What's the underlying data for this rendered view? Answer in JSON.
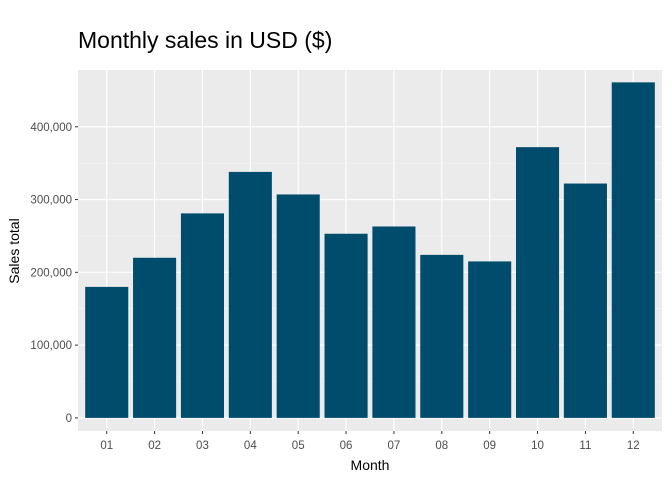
{
  "chart_data": {
    "type": "bar",
    "title": "Monthly sales in USD ($)",
    "xlabel": "Month",
    "ylabel": "Sales total",
    "categories": [
      "01",
      "02",
      "03",
      "04",
      "05",
      "06",
      "07",
      "08",
      "09",
      "10",
      "11",
      "12"
    ],
    "values": [
      180000,
      220000,
      281000,
      338000,
      307000,
      253000,
      263000,
      224000,
      215000,
      372000,
      322000,
      461000
    ],
    "ylim": [
      -18000,
      478000
    ],
    "yticks": [
      0,
      100000,
      200000,
      300000,
      400000
    ],
    "ytick_labels": [
      "0",
      "100,000",
      "200,000",
      "300,000",
      "400,000"
    ],
    "grid": true,
    "legend": "none",
    "colors": {
      "bar": "#004c6d",
      "panel": "#ebebeb",
      "grid_major": "#ffffff",
      "grid_minor": "#f5f5f5"
    }
  }
}
